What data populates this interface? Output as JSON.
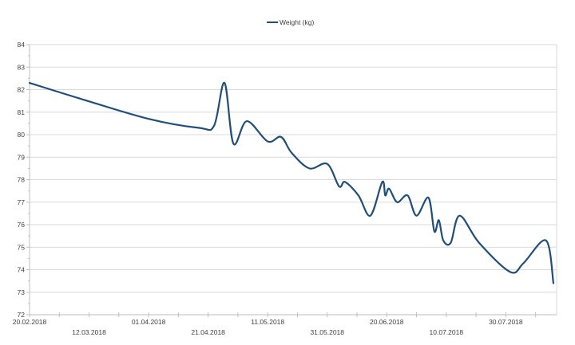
{
  "chart_data": {
    "type": "line",
    "title": "",
    "xlabel": "",
    "ylabel": "",
    "legend": {
      "position": "top",
      "entries": [
        "Weight (kg)"
      ]
    },
    "grid": {
      "horizontal": true,
      "vertical": false
    },
    "ylim": [
      72,
      84
    ],
    "yticks": [
      72,
      73,
      74,
      75,
      76,
      77,
      78,
      79,
      80,
      81,
      82,
      83,
      84
    ],
    "xtick_labels": [
      "20.02.2018",
      "12.03.2018",
      "01.04.2018",
      "21.04.2018",
      "11.05.2018",
      "31.05.2018",
      "20.06.2018",
      "10.07.2018",
      "30.07.2018"
    ],
    "xtick_label_days": [
      0,
      20,
      40,
      60,
      80,
      100,
      120,
      140,
      160
    ],
    "minor_tick_interval_days": 10,
    "x_range_days": [
      0,
      176
    ],
    "x_origin": "20.02.2018",
    "smooth": true,
    "line_color": "#1f4e79",
    "series": [
      {
        "name": "Weight (kg)",
        "x_days": [
          0,
          17,
          40,
          57,
          62,
          65.5,
          68.5,
          73,
          80,
          84.5,
          88,
          94,
          100,
          104,
          106,
          110.5,
          114.5,
          118.5,
          119.5,
          120.8,
          123.5,
          127,
          130,
          134,
          136,
          137.5,
          139,
          141.5,
          144.5,
          151,
          161.5,
          166,
          173.5,
          176
        ],
        "values": [
          82.3,
          81.6,
          80.7,
          80.3,
          80.4,
          82.3,
          79.6,
          80.6,
          79.7,
          79.9,
          79.2,
          78.5,
          78.7,
          77.7,
          77.9,
          77.3,
          76.4,
          77.9,
          77.3,
          77.6,
          77.0,
          77.3,
          76.4,
          77.2,
          75.7,
          76.2,
          75.3,
          75.2,
          76.4,
          75.2,
          73.9,
          74.3,
          75.3,
          73.4
        ]
      }
    ]
  },
  "colors": {
    "series": "#1f4e79",
    "grid": "#d9d9d9",
    "axis": "#bfbfbf",
    "text": "#404040"
  }
}
